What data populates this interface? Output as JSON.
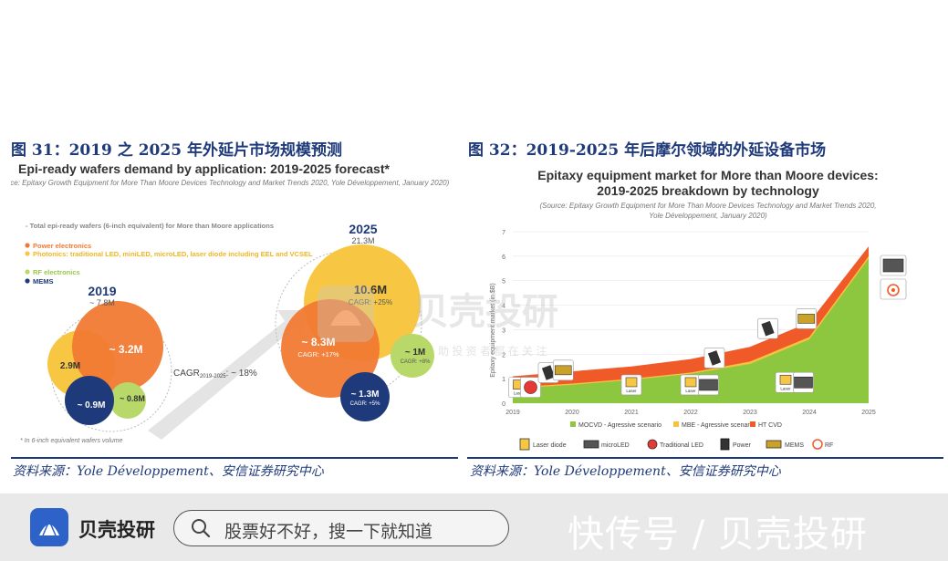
{
  "figure31": {
    "title": "图 31：2019 之 2025 年外延片市场规模预测",
    "source": "资料来源：Yole Développement、安信证券研究中心"
  },
  "figure32": {
    "title": "图 32：2019-2025 年后摩尔领域的外延设备市场",
    "source": "资料来源：Yole Développement、安信证券研究中心"
  },
  "watermark": {
    "brand": "贝壳投研",
    "tagline": "助 投 资 者 都 在 关 注"
  },
  "bottom_bar": {
    "brand_name": "贝壳投研",
    "search_placeholder": "股票好不好，搜一下就知道",
    "overlay": "快传号 / 贝壳投研"
  },
  "colors": {
    "title_blue": "#1f3a7a",
    "power": "#f07a33",
    "photonics": "#f7c744",
    "rf": "#b8d96a",
    "mems": "#1f3a7a",
    "mocvd": "#8dc63f",
    "mbe": "#f5c242",
    "htcvd": "#f05a28"
  },
  "chart_data": [
    {
      "type": "bubble",
      "title": "Epi-ready wafers demand by application: 2019-2025 forecast*",
      "subtitle": "(Source: Epitaxy Growth Equipment for More Than Moore Devices Technology and Market Trends 2020, Yole Développement, January 2020)",
      "legend": [
        "- Total epi-ready wafers (6-inch equivalent) for More than Moore applications",
        "Power electronics",
        "Photonics: traditional LED, miniLED, microLED, laser diode including EEL and VCSEL",
        "RF electronics",
        "MEMS"
      ],
      "groups": [
        {
          "year": "2019",
          "total": "~ 7.8M",
          "items": [
            {
              "label": "~ 3.2M",
              "value": 3.2,
              "category": "Power electronics"
            },
            {
              "label": "2.9M",
              "value": 2.9,
              "category": "Photonics"
            },
            {
              "label": "~ 0.9M",
              "value": 0.9,
              "category": "MEMS"
            },
            {
              "label": "~ 0.8M",
              "value": 0.8,
              "category": "RF electronics"
            }
          ]
        },
        {
          "year": "2025",
          "total": "21.3M",
          "items": [
            {
              "label": "10.6M",
              "sublabel": "CAGR: +25%",
              "value": 10.6,
              "category": "Photonics"
            },
            {
              "label": "~ 8.3M",
              "sublabel": "CAGR: +17%",
              "value": 8.3,
              "category": "Power electronics"
            },
            {
              "label": "~ 1M",
              "sublabel": "CAGR: +8%",
              "value": 1.0,
              "category": "RF electronics"
            },
            {
              "label": "~ 1.3M",
              "sublabel": "CAGR: +5%",
              "value": 1.3,
              "category": "MEMS"
            }
          ]
        }
      ],
      "cagr_label": "CAGR",
      "cagr_sub": "2019-2025",
      "cagr_value": ": ~ 18%",
      "footnote": "* In 6-inch equivalent wafers volume"
    },
    {
      "type": "area",
      "title": "Epitaxy equipment market for More than Moore devices:",
      "title2": "2019-2025 breakdown by technology",
      "subtitle": "(Source: Epitaxy Growth Equipment for More Than Moore Devices Technology and Market Trends 2020,",
      "subtitle2": "Yole Développement, January 2020)",
      "ylabel": "Epitaxy equipment market (in $B)",
      "x": [
        2019,
        2020,
        2021,
        2022,
        2023,
        2024,
        2025
      ],
      "x_labels": [
        "2019",
        "2020",
        "2021",
        "2022",
        "2023",
        "2024",
        "2025"
      ],
      "y_ticks": [
        "0",
        "1",
        "2",
        "3",
        "4",
        "5",
        "6",
        "7"
      ],
      "ylim": [
        0,
        7
      ],
      "series": [
        {
          "name": "MOCVD - Agressive scenario",
          "values": [
            0.6,
            0.75,
            0.95,
            1.2,
            1.6,
            2.6,
            5.9
          ]
        },
        {
          "name": "MBE - Agressive scenario",
          "values": [
            0.65,
            0.8,
            1.0,
            1.25,
            1.7,
            2.7,
            6.0
          ]
        },
        {
          "name": "HT CVD",
          "values": [
            1.1,
            1.3,
            1.5,
            1.8,
            2.3,
            3.3,
            6.4
          ]
        }
      ],
      "icons_legend": [
        "Laser diode",
        "microLED",
        "Traditional LED",
        "Power",
        "MEMS",
        "RF"
      ],
      "icon_caption": "Laser"
    }
  ]
}
